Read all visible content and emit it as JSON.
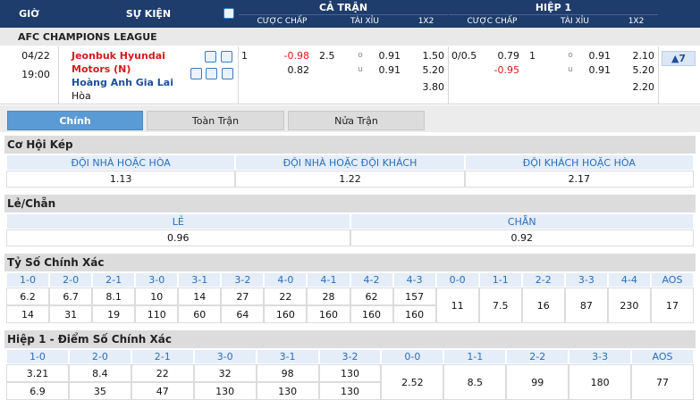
{
  "header": {
    "time": "GIỜ",
    "event": "SỰ KIỆN",
    "full": "CẢ TRẬN",
    "half": "HIỆP 1",
    "full_cols": [
      "CƯỢC CHẤP",
      "TÀI XỈU",
      "1X2"
    ],
    "half_cols": [
      "CƯỢC CHẤP",
      "TÀI XỈU",
      "1X2"
    ]
  },
  "league": "AFC CHAMPIONS LEAGUE",
  "match": {
    "date": "04/22",
    "time": "19:00",
    "home": "Jeonbuk Hyundai Motors (N)",
    "away": "Hoàng Anh Gia Lai",
    "draw": "Hòa",
    "more": "▲7",
    "full": {
      "hdp": "1",
      "hdp_odds": [
        "-0.98",
        "0.82"
      ],
      "ou": "2.5",
      "ou_marks": [
        "o",
        "u"
      ],
      "ou_odds": [
        "0.91",
        "0.91"
      ],
      "x12": [
        "1.50",
        "5.20",
        "3.80"
      ]
    },
    "half": {
      "hdp": "0/0.5",
      "hdp_odds": [
        "0.79",
        "-0.95"
      ],
      "ou": "1",
      "ou_marks": [
        "o",
        "u"
      ],
      "ou_odds": [
        "0.91",
        "0.91"
      ],
      "x12": [
        "2.10",
        "5.20",
        "2.20"
      ]
    }
  },
  "tabs": [
    "Chính",
    "Toàn Trận",
    "Nửa Trận"
  ],
  "double_chance": {
    "title": "Cơ Hội Kép",
    "headers": [
      "ĐỘI NHÀ HOẶC HÒA",
      "ĐỘI NHÀ HOẶC ĐỘI KHÁCH",
      "ĐỘI KHÁCH HOẶC HÒA"
    ],
    "values": [
      "1.13",
      "1.22",
      "2.17"
    ]
  },
  "odd_even": {
    "title": "Lẻ/Chẵn",
    "headers": [
      "LẺ",
      "CHẴN"
    ],
    "values": [
      "0.96",
      "0.92"
    ]
  },
  "correct_score": {
    "title": "Tỷ Số Chính Xác",
    "headers": [
      "1-0",
      "2-0",
      "2-1",
      "3-0",
      "3-1",
      "3-2",
      "4-0",
      "4-1",
      "4-2",
      "4-3",
      "0-0",
      "1-1",
      "2-2",
      "3-3",
      "4-4",
      "AOS"
    ],
    "rows": [
      [
        "6.2",
        "6.7",
        "8.1",
        "10",
        "14",
        "27",
        "22",
        "28",
        "62",
        "157"
      ],
      [
        "14",
        "31",
        "19",
        "110",
        "60",
        "64",
        "160",
        "160",
        "160",
        "160"
      ]
    ],
    "draws": [
      "11",
      "7.5",
      "16",
      "87",
      "230",
      "17"
    ]
  },
  "half_correct_score": {
    "title": "Hiệp 1 - Điểm Số Chính Xác",
    "headers": [
      "1-0",
      "2-0",
      "2-1",
      "3-0",
      "3-1",
      "3-2",
      "0-0",
      "1-1",
      "2-2",
      "3-3",
      "AOS"
    ],
    "rows": [
      [
        "3.21",
        "8.4",
        "22",
        "32",
        "98",
        "130"
      ],
      [
        "6.9",
        "35",
        "47",
        "130",
        "130",
        "130"
      ]
    ],
    "draws": [
      "2.52",
      "8.5",
      "99",
      "180",
      "77"
    ]
  }
}
